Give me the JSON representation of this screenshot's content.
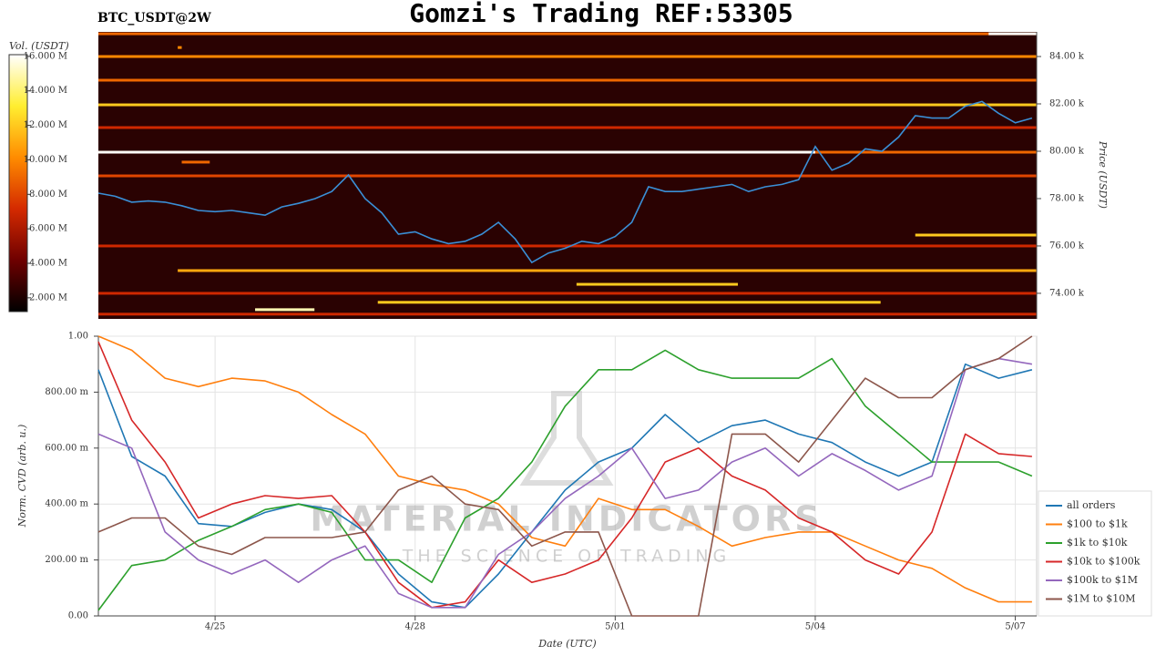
{
  "header": {
    "title": "Gomzi's Trading REF:53305",
    "symbol": "BTC_USDT@2W"
  },
  "watermark": {
    "brand": "MATERIAL INDICATORS",
    "tagline": "THE SCIENCE OF TRADING"
  },
  "chart_data": [
    {
      "type": "heatmap",
      "ylabel": "Price (USDT)",
      "xlim": [
        113.25,
        127.32
      ],
      "ylim": [
        72920,
        85040
      ],
      "yticks": [
        {
          "value": 74000,
          "label": "74.00 k"
        },
        {
          "value": 76000,
          "label": "76.00 k"
        },
        {
          "value": 78000,
          "label": "78.00 k"
        },
        {
          "value": 80000,
          "label": "80.00 k"
        },
        {
          "value": 82000,
          "label": "82.00 k"
        },
        {
          "value": 84000,
          "label": "84.00 k"
        }
      ],
      "colorbar": {
        "label": "Vol. (USDT)",
        "lim": [
          1200000,
          16100000
        ],
        "ticks": [
          {
            "value": 2000000,
            "label": "2.000 M"
          },
          {
            "value": 4000000,
            "label": "4.000 M"
          },
          {
            "value": 6000000,
            "label": "6.000 M"
          },
          {
            "value": 8000000,
            "label": "8.000 M"
          },
          {
            "value": 10000000,
            "label": "10.000 M"
          },
          {
            "value": 12000000,
            "label": "12.000 M"
          },
          {
            "value": 14000000,
            "label": "14.000 M"
          },
          {
            "value": 16000000,
            "label": "16.000 M"
          }
        ],
        "colors": [
          "#000000",
          "#6e0000",
          "#d42a00",
          "#ff8c00",
          "#ffee30",
          "#ffffff"
        ]
      },
      "levels": [
        {
          "price": 84960,
          "volume": 9000000,
          "from": 113.25,
          "to": 127.32
        },
        {
          "price": 84960,
          "volume": 16000000,
          "from": 126.6,
          "to": 127.32
        },
        {
          "price": 84380,
          "volume": 10000000,
          "from": 114.44,
          "to": 114.5
        },
        {
          "price": 84000,
          "volume": 10000000,
          "from": 113.25,
          "to": 127.32
        },
        {
          "price": 83000,
          "volume": 9000000,
          "from": 113.25,
          "to": 127.32
        },
        {
          "price": 81960,
          "volume": 12000000,
          "from": 113.25,
          "to": 127.32
        },
        {
          "price": 81000,
          "volume": 7000000,
          "from": 113.25,
          "to": 127.32
        },
        {
          "price": 79960,
          "volume": 16000000,
          "from": 113.25,
          "to": 124.0
        },
        {
          "price": 79960,
          "volume": 9000000,
          "from": 124.0,
          "to": 127.32
        },
        {
          "price": 79540,
          "volume": 9000000,
          "from": 114.5,
          "to": 114.92
        },
        {
          "price": 78960,
          "volume": 8000000,
          "from": 113.25,
          "to": 127.32
        },
        {
          "price": 76460,
          "volume": 12000000,
          "from": 125.5,
          "to": 127.32
        },
        {
          "price": 76000,
          "volume": 7000000,
          "from": 113.25,
          "to": 127.32
        },
        {
          "price": 74960,
          "volume": 11000000,
          "from": 114.44,
          "to": 127.32
        },
        {
          "price": 74380,
          "volume": 12000000,
          "from": 120.42,
          "to": 122.84
        },
        {
          "price": 74000,
          "volume": 7000000,
          "from": 113.25,
          "to": 127.32
        },
        {
          "price": 73620,
          "volume": 12000000,
          "from": 117.44,
          "to": 124.98
        },
        {
          "price": 73310,
          "volume": 15000000,
          "from": 115.6,
          "to": 116.49
        },
        {
          "price": 73120,
          "volume": 7000000,
          "from": 113.25,
          "to": 127.32
        }
      ],
      "x": [
        113.25,
        113.5,
        113.75,
        114,
        114.25,
        114.5,
        114.75,
        115,
        115.25,
        115.5,
        115.75,
        116,
        116.25,
        116.5,
        116.75,
        117,
        117.25,
        117.5,
        117.75,
        118,
        118.25,
        118.5,
        118.75,
        119,
        119.25,
        119.5,
        119.75,
        120,
        120.25,
        120.5,
        120.75,
        121,
        121.25,
        121.5,
        121.75,
        122,
        122.25,
        122.5,
        122.75,
        123,
        123.25,
        123.5,
        123.75,
        124,
        124.25,
        124.5,
        124.75,
        125,
        125.25,
        125.5,
        125.75,
        126,
        126.25,
        126.5,
        126.75,
        127,
        127.25
      ],
      "series": [
        {
          "color": "#3a8fd6",
          "values": [
            78230,
            78100,
            77850,
            77900,
            77850,
            77700,
            77500,
            77450,
            77500,
            77400,
            77300,
            77650,
            77800,
            78000,
            78300,
            79000,
            78000,
            77400,
            76500,
            76600,
            76300,
            76100,
            76200,
            76500,
            77000,
            76300,
            75300,
            75700,
            75900,
            76200,
            76100,
            76400,
            77000,
            78500,
            78300,
            78300,
            78400,
            78500,
            78600,
            78300,
            78500,
            78600,
            78800,
            80200,
            79200,
            79500,
            80100,
            80000,
            80600,
            81500,
            81400,
            81400,
            81900,
            82100,
            81600,
            81200,
            81400
          ]
        }
      ]
    },
    {
      "type": "line",
      "xlabel": "Date (UTC)",
      "ylabel": "Norm. CVD (arb. u.)",
      "xlim": [
        113.25,
        127.32
      ],
      "ylim": [
        0,
        1
      ],
      "xticks": [
        {
          "value": 115,
          "label": "4/25"
        },
        {
          "value": 118,
          "label": "4/28"
        },
        {
          "value": 121,
          "label": "5/01"
        },
        {
          "value": 124,
          "label": "5/04"
        },
        {
          "value": 127,
          "label": "5/07"
        }
      ],
      "yticks": [
        {
          "value": 0,
          "label": "0.00"
        },
        {
          "value": 0.2,
          "label": "200.00 m"
        },
        {
          "value": 0.4,
          "label": "400.00 m"
        },
        {
          "value": 0.6,
          "label": "600.00 m"
        },
        {
          "value": 0.8,
          "label": "800.00 m"
        },
        {
          "value": 1,
          "label": "1.00"
        }
      ],
      "grid": true,
      "legend": "lower right",
      "x": [
        113.25,
        113.75,
        114.25,
        114.75,
        115.25,
        115.75,
        116.25,
        116.75,
        117.25,
        117.75,
        118.25,
        118.75,
        119.25,
        119.75,
        120.25,
        120.75,
        121.25,
        121.75,
        122.25,
        122.75,
        123.25,
        123.75,
        124.25,
        124.75,
        125.25,
        125.75,
        126.25,
        126.75,
        127.25
      ],
      "series": [
        {
          "name": "all orders",
          "color": "#1f77b4",
          "values": [
            0.88,
            0.57,
            0.5,
            0.33,
            0.32,
            0.37,
            0.4,
            0.38,
            0.3,
            0.15,
            0.05,
            0.03,
            0.15,
            0.3,
            0.45,
            0.55,
            0.6,
            0.72,
            0.62,
            0.68,
            0.7,
            0.65,
            0.62,
            0.55,
            0.5,
            0.55,
            0.9,
            0.85,
            0.88
          ]
        },
        {
          "name": "$100 to $1k",
          "color": "#ff7f0e",
          "values": [
            1.0,
            0.95,
            0.85,
            0.82,
            0.85,
            0.84,
            0.8,
            0.72,
            0.65,
            0.5,
            0.47,
            0.45,
            0.4,
            0.28,
            0.25,
            0.42,
            0.38,
            0.38,
            0.32,
            0.25,
            0.28,
            0.3,
            0.3,
            0.25,
            0.2,
            0.17,
            0.1,
            0.05,
            0.05
          ]
        },
        {
          "name": "$1k to $10k",
          "color": "#2ca02c",
          "values": [
            0.02,
            0.18,
            0.2,
            0.27,
            0.32,
            0.38,
            0.4,
            0.37,
            0.2,
            0.2,
            0.12,
            0.35,
            0.42,
            0.55,
            0.75,
            0.88,
            0.88,
            0.95,
            0.88,
            0.85,
            0.85,
            0.85,
            0.92,
            0.75,
            0.65,
            0.55,
            0.55,
            0.55,
            0.5
          ]
        },
        {
          "name": "$10k to $100k",
          "color": "#d62728",
          "values": [
            0.98,
            0.7,
            0.55,
            0.35,
            0.4,
            0.43,
            0.42,
            0.43,
            0.3,
            0.12,
            0.03,
            0.05,
            0.2,
            0.12,
            0.15,
            0.2,
            0.35,
            0.55,
            0.6,
            0.5,
            0.45,
            0.35,
            0.3,
            0.2,
            0.15,
            0.3,
            0.65,
            0.58,
            0.57
          ]
        },
        {
          "name": "$100k to $1M",
          "color": "#9467bd",
          "values": [
            0.65,
            0.6,
            0.3,
            0.2,
            0.15,
            0.2,
            0.12,
            0.2,
            0.25,
            0.08,
            0.03,
            0.03,
            0.22,
            0.3,
            0.42,
            0.5,
            0.6,
            0.42,
            0.45,
            0.55,
            0.6,
            0.5,
            0.58,
            0.52,
            0.45,
            0.5,
            0.88,
            0.92,
            0.9
          ]
        },
        {
          "name": "$1M to $10M",
          "color": "#8c564b",
          "values": [
            0.3,
            0.35,
            0.35,
            0.25,
            0.22,
            0.28,
            0.28,
            0.28,
            0.3,
            0.45,
            0.5,
            0.4,
            0.38,
            0.25,
            0.3,
            0.3,
            0.0,
            0.0,
            0.0,
            0.65,
            0.65,
            0.55,
            0.7,
            0.85,
            0.78,
            0.78,
            0.88,
            0.92,
            1.0
          ]
        }
      ]
    }
  ]
}
